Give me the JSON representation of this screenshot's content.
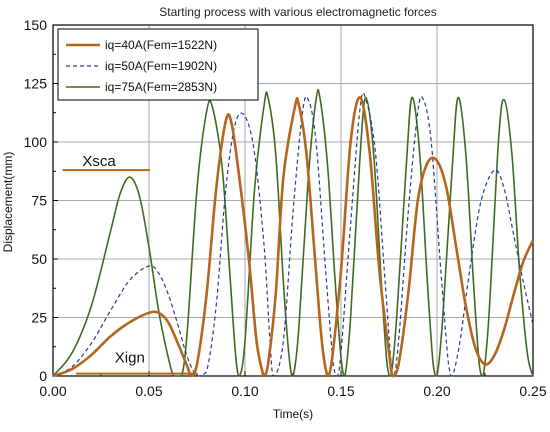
{
  "chart_data": {
    "type": "line",
    "title": "Starting process with various electromagnetic forces",
    "xlabel": "Time(s)",
    "ylabel": "Displacement(mm)",
    "xlim": [
      0.0,
      0.25
    ],
    "ylim": [
      0,
      150
    ],
    "xticks": [
      "0.00",
      "0.05",
      "0.10",
      "0.15",
      "0.20",
      "0.25"
    ],
    "yticks": [
      "0",
      "25",
      "50",
      "75",
      "100",
      "125",
      "150"
    ],
    "grid": true,
    "legend_position": "top-left",
    "annotations": [
      {
        "text": "Xsca",
        "x": 0.025,
        "y": 88,
        "line_color": "#b5651d"
      },
      {
        "text": "Xign",
        "x": 0.04,
        "y": 5,
        "line_color": "#b5651d"
      }
    ],
    "series": [
      {
        "name": "iq=40A(Fem=1522N)",
        "color": "#b5651d",
        "dash": "solid",
        "width": 2.6,
        "points": [
          [
            0.0,
            0
          ],
          [
            0.01,
            3
          ],
          [
            0.02,
            9
          ],
          [
            0.03,
            17
          ],
          [
            0.04,
            23
          ],
          [
            0.05,
            27
          ],
          [
            0.055,
            27
          ],
          [
            0.06,
            23
          ],
          [
            0.065,
            14
          ],
          [
            0.07,
            4
          ],
          [
            0.072,
            0
          ],
          [
            0.075,
            5
          ],
          [
            0.08,
            35
          ],
          [
            0.085,
            80
          ],
          [
            0.09,
            109
          ],
          [
            0.093,
            108
          ],
          [
            0.097,
            85
          ],
          [
            0.102,
            50
          ],
          [
            0.106,
            15
          ],
          [
            0.109,
            2
          ],
          [
            0.11,
            0
          ],
          [
            0.112,
            5
          ],
          [
            0.116,
            35
          ],
          [
            0.12,
            85
          ],
          [
            0.126,
            115
          ],
          [
            0.128,
            116
          ],
          [
            0.132,
            95
          ],
          [
            0.136,
            55
          ],
          [
            0.14,
            15
          ],
          [
            0.143,
            0
          ],
          [
            0.145,
            5
          ],
          [
            0.15,
            45
          ],
          [
            0.155,
            100
          ],
          [
            0.16,
            119
          ],
          [
            0.165,
            95
          ],
          [
            0.17,
            45
          ],
          [
            0.175,
            10
          ],
          [
            0.177,
            0
          ],
          [
            0.18,
            5
          ],
          [
            0.185,
            35
          ],
          [
            0.19,
            75
          ],
          [
            0.195,
            91
          ],
          [
            0.2,
            92
          ],
          [
            0.205,
            80
          ],
          [
            0.21,
            55
          ],
          [
            0.215,
            30
          ],
          [
            0.22,
            12
          ],
          [
            0.225,
            5
          ],
          [
            0.23,
            9
          ],
          [
            0.235,
            20
          ],
          [
            0.24,
            35
          ],
          [
            0.245,
            49
          ],
          [
            0.25,
            58
          ]
        ]
      },
      {
        "name": "iq=50A(Fem=1902N)",
        "color": "#2a3a8c",
        "dash": "dashed",
        "width": 1.2,
        "points": [
          [
            0.0,
            0
          ],
          [
            0.01,
            4
          ],
          [
            0.02,
            14
          ],
          [
            0.03,
            28
          ],
          [
            0.04,
            41
          ],
          [
            0.05,
            47
          ],
          [
            0.055,
            44
          ],
          [
            0.06,
            35
          ],
          [
            0.065,
            22
          ],
          [
            0.07,
            8
          ],
          [
            0.075,
            0
          ],
          [
            0.08,
            2
          ],
          [
            0.085,
            30
          ],
          [
            0.09,
            80
          ],
          [
            0.095,
            108
          ],
          [
            0.1,
            111
          ],
          [
            0.105,
            95
          ],
          [
            0.11,
            55
          ],
          [
            0.113,
            15
          ],
          [
            0.115,
            0
          ],
          [
            0.12,
            15
          ],
          [
            0.125,
            70
          ],
          [
            0.13,
            113
          ],
          [
            0.133,
            118
          ],
          [
            0.137,
            100
          ],
          [
            0.142,
            45
          ],
          [
            0.146,
            5
          ],
          [
            0.148,
            0
          ],
          [
            0.15,
            10
          ],
          [
            0.155,
            65
          ],
          [
            0.16,
            115
          ],
          [
            0.163,
            118
          ],
          [
            0.168,
            95
          ],
          [
            0.173,
            40
          ],
          [
            0.177,
            0
          ],
          [
            0.18,
            15
          ],
          [
            0.185,
            70
          ],
          [
            0.19,
            113
          ],
          [
            0.193,
            118
          ],
          [
            0.197,
            100
          ],
          [
            0.202,
            45
          ],
          [
            0.206,
            5
          ],
          [
            0.208,
            0
          ],
          [
            0.212,
            15
          ],
          [
            0.217,
            45
          ],
          [
            0.223,
            75
          ],
          [
            0.23,
            88
          ],
          [
            0.235,
            80
          ],
          [
            0.24,
            60
          ],
          [
            0.245,
            40
          ],
          [
            0.25,
            22
          ]
        ]
      },
      {
        "name": "iq=75A(Fem=2853N)",
        "color": "#3f6b1e",
        "dash": "solid",
        "width": 1.6,
        "points": [
          [
            0.0,
            0
          ],
          [
            0.01,
            10
          ],
          [
            0.02,
            30
          ],
          [
            0.03,
            62
          ],
          [
            0.035,
            78
          ],
          [
            0.04,
            85
          ],
          [
            0.045,
            77
          ],
          [
            0.05,
            55
          ],
          [
            0.055,
            28
          ],
          [
            0.06,
            8
          ],
          [
            0.063,
            0
          ],
          [
            0.067,
            0
          ],
          [
            0.07,
            20
          ],
          [
            0.075,
            80
          ],
          [
            0.08,
            113
          ],
          [
            0.083,
            115
          ],
          [
            0.088,
            90
          ],
          [
            0.092,
            45
          ],
          [
            0.095,
            10
          ],
          [
            0.097,
            0
          ],
          [
            0.1,
            15
          ],
          [
            0.105,
            80
          ],
          [
            0.11,
            116
          ],
          [
            0.112,
            119
          ],
          [
            0.116,
            95
          ],
          [
            0.12,
            40
          ],
          [
            0.123,
            8
          ],
          [
            0.125,
            0
          ],
          [
            0.128,
            20
          ],
          [
            0.133,
            85
          ],
          [
            0.137,
            118
          ],
          [
            0.139,
            119
          ],
          [
            0.143,
            90
          ],
          [
            0.147,
            40
          ],
          [
            0.15,
            8
          ],
          [
            0.152,
            0
          ],
          [
            0.155,
            25
          ],
          [
            0.16,
            95
          ],
          [
            0.163,
            119
          ],
          [
            0.167,
            95
          ],
          [
            0.171,
            40
          ],
          [
            0.174,
            5
          ],
          [
            0.176,
            0
          ],
          [
            0.179,
            25
          ],
          [
            0.184,
            90
          ],
          [
            0.187,
            119
          ],
          [
            0.191,
            95
          ],
          [
            0.195,
            40
          ],
          [
            0.198,
            5
          ],
          [
            0.2,
            0
          ],
          [
            0.203,
            25
          ],
          [
            0.208,
            90
          ],
          [
            0.211,
            119
          ],
          [
            0.215,
            95
          ],
          [
            0.219,
            40
          ],
          [
            0.222,
            5
          ],
          [
            0.224,
            0
          ],
          [
            0.227,
            25
          ],
          [
            0.232,
            100
          ],
          [
            0.235,
            118
          ],
          [
            0.239,
            95
          ],
          [
            0.243,
            45
          ],
          [
            0.247,
            10
          ],
          [
            0.25,
            0
          ]
        ]
      }
    ]
  }
}
